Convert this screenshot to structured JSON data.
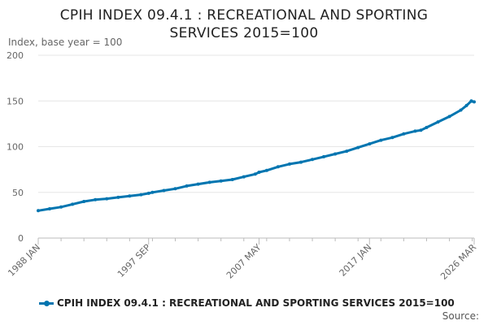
{
  "chart_data": {
    "type": "line",
    "title_line1": "CPIH INDEX 09.4.1 : RECREATIONAL AND SPORTING",
    "title_line2": "SERVICES 2015=100",
    "ylabel": "Index, base year = 100",
    "xlabel": "",
    "ylim": [
      0,
      200
    ],
    "yticks": [
      0,
      50,
      100,
      150,
      200
    ],
    "grid": true,
    "legend_position": "bottom",
    "color": "#0075b0",
    "x_start": "1988 JAN",
    "x_end": "2026 MAR",
    "xticks": [
      "1988 JAN",
      "1997 SEP",
      "2007 MAY",
      "2017 JAN",
      "2026 MAR"
    ],
    "series": [
      {
        "name": "CPIH INDEX 09.4.1 : RECREATIONAL AND SPORTING SERVICES 2015=100",
        "points": [
          [
            "1988 JAN",
            30
          ],
          [
            "1989 JAN",
            32
          ],
          [
            "1990 JAN",
            34
          ],
          [
            "1991 JAN",
            37
          ],
          [
            "1992 JAN",
            40
          ],
          [
            "1993 JAN",
            42
          ],
          [
            "1994 JAN",
            43
          ],
          [
            "1995 JAN",
            44.5
          ],
          [
            "1996 JAN",
            46
          ],
          [
            "1997 JAN",
            47.5
          ],
          [
            "1997 SEP",
            49
          ],
          [
            "1998 JAN",
            50
          ],
          [
            "1999 JAN",
            52
          ],
          [
            "2000 JAN",
            54
          ],
          [
            "2001 JAN",
            57
          ],
          [
            "2002 JAN",
            59
          ],
          [
            "2003 JAN",
            61
          ],
          [
            "2004 JAN",
            62.5
          ],
          [
            "2005 JAN",
            64
          ],
          [
            "2006 JAN",
            67
          ],
          [
            "2007 JAN",
            70
          ],
          [
            "2007 MAY",
            72
          ],
          [
            "2008 JAN",
            74
          ],
          [
            "2009 JAN",
            78
          ],
          [
            "2010 JAN",
            81
          ],
          [
            "2011 JAN",
            83
          ],
          [
            "2012 JAN",
            86
          ],
          [
            "2013 JAN",
            89
          ],
          [
            "2014 JAN",
            92
          ],
          [
            "2015 JAN",
            95
          ],
          [
            "2016 JAN",
            99
          ],
          [
            "2017 JAN",
            103
          ],
          [
            "2018 JAN",
            107
          ],
          [
            "2019 JAN",
            110
          ],
          [
            "2020 JAN",
            114
          ],
          [
            "2021 JAN",
            117
          ],
          [
            "2021 JUL",
            118
          ],
          [
            "2022 JAN",
            121
          ],
          [
            "2023 JAN",
            127
          ],
          [
            "2024 JAN",
            133
          ],
          [
            "2025 JAN",
            140
          ],
          [
            "2025 JUL",
            145
          ],
          [
            "2025 DEC",
            150
          ],
          [
            "2026 MAR",
            149
          ]
        ]
      }
    ]
  },
  "source_label": "Source:"
}
